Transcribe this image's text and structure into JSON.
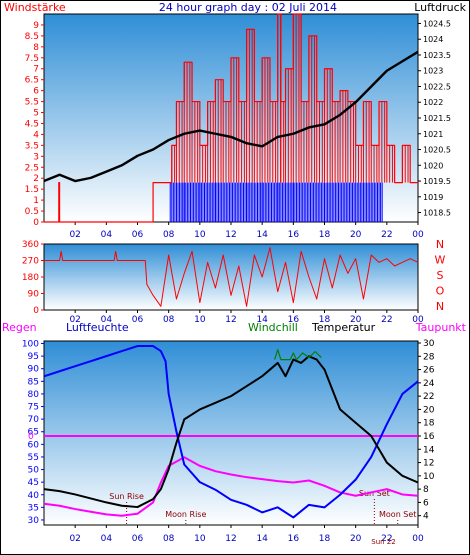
{
  "colors": {
    "red": "#ff0000",
    "blue": "#0000ff",
    "magenta": "#ff00ff",
    "green": "#008000",
    "black": "#000000",
    "title_blue": "#0000c0",
    "panel_top": "#2f8ed6",
    "panel_bottom": "#ffffff"
  },
  "chart_data": [
    {
      "type": "line",
      "title": "24 hour graph day : 02 Juli 2014",
      "left_label": "Windstärke",
      "right_label": "Luftdruck",
      "x_ticks": [
        "02",
        "04",
        "06",
        "08",
        "10",
        "12",
        "14",
        "16",
        "18",
        "20",
        "22",
        "00"
      ],
      "y_left_ticks": [
        "0",
        "0.5",
        "1",
        "1.5",
        "2",
        "2.5",
        "3",
        "3.5",
        "4",
        "4.5",
        "5",
        "5.5",
        "6",
        "6.5",
        "7",
        "7.5",
        "8",
        "8.5",
        "9"
      ],
      "y_right_ticks": [
        "1018.5",
        "1019",
        "1019.5",
        "1020",
        "1020.5",
        "1021",
        "1021.5",
        "1022",
        "1022.5",
        "1023",
        "1023.5",
        "1024",
        "1024.5"
      ],
      "ylim_left": [
        0,
        9.5
      ],
      "ylim_right": [
        1018.2,
        1024.8
      ],
      "series": [
        {
          "name": "Windstärke",
          "axis": "left",
          "color": "red",
          "x": [
            0,
            0.9,
            0.95,
            1.0,
            1.1,
            6.9,
            7.0,
            8.0,
            8.2,
            8.5,
            9.0,
            9.5,
            10,
            10.5,
            11,
            11.5,
            12,
            12.5,
            13,
            13.5,
            14,
            14.5,
            15,
            15.2,
            15.5,
            16,
            16.5,
            17,
            17.5,
            18,
            18.5,
            19,
            19.5,
            20,
            20.5,
            21,
            21.5,
            22,
            22.5,
            23,
            23.5,
            24
          ],
          "y": [
            0,
            0,
            1.8,
            0,
            0,
            0,
            1.8,
            1.8,
            3.5,
            5.5,
            7.3,
            5.5,
            3.5,
            5.5,
            6.5,
            5.5,
            7.5,
            5.5,
            8.8,
            5.5,
            7.5,
            5.5,
            9.5,
            5.5,
            7.0,
            9.5,
            5.5,
            8.5,
            5.5,
            7.0,
            5.5,
            6.0,
            5.5,
            3.5,
            5.5,
            3.5,
            5.5,
            3.5,
            1.8,
            3.5,
            1.8,
            1.8
          ]
        },
        {
          "name": "Windrichtung (Balken)",
          "axis": "left",
          "color": "blue",
          "x": [
            8.1,
            9.0,
            10.0,
            11.0,
            12.0,
            13.0,
            14.0,
            15.0,
            16.0,
            17.0,
            18.0,
            19.0,
            20.0,
            21.0,
            21.8
          ],
          "y": [
            1.8,
            1.8,
            1.8,
            1.8,
            1.8,
            1.8,
            1.8,
            1.8,
            1.8,
            1.8,
            1.8,
            1.8,
            1.8,
            1.8,
            1.8
          ]
        },
        {
          "name": "Luftdruck",
          "axis": "right",
          "color": "black",
          "x": [
            0,
            1,
            2,
            3,
            4,
            5,
            6,
            7,
            8,
            9,
            10,
            11,
            12,
            13,
            14,
            15,
            16,
            17,
            18,
            19,
            20,
            21,
            22,
            23,
            24
          ],
          "y": [
            1019.5,
            1019.7,
            1019.5,
            1019.6,
            1019.8,
            1020.0,
            1020.3,
            1020.5,
            1020.8,
            1021.0,
            1021.1,
            1021.0,
            1020.9,
            1020.7,
            1020.6,
            1020.9,
            1021.0,
            1021.2,
            1021.3,
            1021.6,
            1022.0,
            1022.5,
            1023.0,
            1023.3,
            1023.6
          ]
        }
      ]
    },
    {
      "type": "line",
      "x_ticks": [
        "02",
        "04",
        "06",
        "08",
        "10",
        "12",
        "14",
        "16",
        "18",
        "20",
        "22",
        "00"
      ],
      "y_ticks": [
        "0",
        "90",
        "180",
        "270",
        "360"
      ],
      "ylim": [
        0,
        360
      ],
      "direction_labels": [
        "N",
        "W",
        "S",
        "O",
        "N"
      ],
      "series": [
        {
          "name": "Windrichtung",
          "color": "red",
          "x": [
            0,
            1,
            1.1,
            1.2,
            4.5,
            4.6,
            4.7,
            6.5,
            6.6,
            7.0,
            7.5,
            8.0,
            8.5,
            9.0,
            9.5,
            10,
            10.5,
            11,
            11.5,
            12,
            12.5,
            13,
            13.5,
            14,
            14.5,
            15,
            15.5,
            16,
            16.5,
            17,
            17.5,
            18,
            18.5,
            19,
            19.5,
            20,
            20.5,
            21,
            21.5,
            22,
            22.5,
            23,
            23.5,
            24
          ],
          "y": [
            270,
            270,
            320,
            270,
            270,
            320,
            270,
            270,
            140,
            80,
            20,
            300,
            60,
            200,
            320,
            40,
            260,
            120,
            300,
            80,
            240,
            20,
            300,
            180,
            340,
            100,
            260,
            40,
            320,
            180,
            60,
            280,
            120,
            300,
            200,
            280,
            60,
            300,
            260,
            280,
            240,
            260,
            280,
            260
          ]
        }
      ]
    },
    {
      "type": "line",
      "labels": {
        "regen": "Regen",
        "luftfeuchte": "Luftfeuchte",
        "windchill": "Windchill",
        "temperatur": "Temperatur",
        "taupunkt": "Taupunkt"
      },
      "annotations": {
        "sun_rise": "Sun Rise",
        "moon_rise": "Moon Rise",
        "sun_set": "Sun Set",
        "moon_set": "Moon Set",
        "sun_set_time": "Sun 22"
      },
      "regen_zero_label": "0",
      "x_ticks": [
        "02",
        "04",
        "06",
        "08",
        "10",
        "12",
        "14",
        "16",
        "18",
        "20",
        "22",
        "00"
      ],
      "y_left_ticks": [
        "30",
        "35",
        "40",
        "45",
        "50",
        "55",
        "60",
        "65",
        "70",
        "75",
        "80",
        "85",
        "90",
        "95",
        "100"
      ],
      "y_right_ticks": [
        "4",
        "6",
        "8",
        "10",
        "12",
        "14",
        "16",
        "18",
        "20",
        "22",
        "24",
        "26",
        "28",
        "30"
      ],
      "ylim_left": [
        28,
        101
      ],
      "ylim_right": [
        2.6,
        30.3
      ],
      "series": [
        {
          "name": "Luftfeuchte",
          "axis": "left",
          "color": "blue",
          "x": [
            0,
            1,
            2,
            3,
            4,
            5,
            6,
            7,
            7.5,
            7.8,
            8,
            8.5,
            9,
            10,
            11,
            12,
            13,
            14,
            15,
            16,
            17,
            18,
            19,
            20,
            21,
            22,
            23,
            24
          ],
          "y": [
            87,
            89,
            91,
            93,
            95,
            97,
            99,
            99,
            97,
            93,
            80,
            65,
            52,
            45,
            42,
            38,
            36,
            33,
            35,
            31,
            36,
            35,
            40,
            46,
            55,
            68,
            80,
            85
          ]
        },
        {
          "name": "Temperatur",
          "axis": "right",
          "color": "black",
          "x": [
            0,
            1,
            2,
            3,
            4,
            5,
            6,
            7,
            7.5,
            8,
            8.5,
            9,
            10,
            11,
            12,
            13,
            14,
            14.5,
            15,
            15.5,
            16,
            16.5,
            17,
            17.5,
            18,
            19,
            20,
            21,
            22,
            23,
            24
          ],
          "y": [
            8,
            7.7,
            7.2,
            6.6,
            6,
            5.5,
            5.3,
            6.5,
            8,
            11,
            15,
            18.5,
            20,
            21,
            22,
            23.5,
            25,
            26,
            27,
            25,
            27.5,
            27,
            28,
            27.5,
            26,
            20,
            18,
            16,
            12,
            10,
            9
          ]
        },
        {
          "name": "Windchill",
          "axis": "right",
          "color": "green",
          "x": [
            14.8,
            15,
            15.2,
            15.8,
            16,
            16.2,
            16.6,
            17,
            17.4,
            17.8
          ],
          "y": [
            27.5,
            29,
            27.5,
            27.5,
            28.5,
            27.5,
            28.5,
            27.8,
            28.7,
            27.8
          ]
        },
        {
          "name": "Taupunkt",
          "axis": "right",
          "color": "magenta",
          "x": [
            0,
            1,
            2,
            3,
            4,
            5,
            6,
            7,
            7.5,
            8,
            9,
            10,
            11,
            12,
            13,
            14,
            15,
            16,
            17,
            18,
            19,
            20,
            21,
            22,
            23,
            24
          ],
          "y": [
            5.8,
            5.5,
            5.0,
            4.6,
            4.2,
            4.0,
            4.3,
            6.0,
            9,
            11.5,
            12.8,
            11.5,
            10.7,
            10.2,
            9.8,
            9.5,
            9.2,
            9.0,
            9.3,
            8.5,
            7.5,
            7.0,
            7.5,
            8.0,
            7.2,
            7.0
          ]
        }
      ]
    }
  ]
}
